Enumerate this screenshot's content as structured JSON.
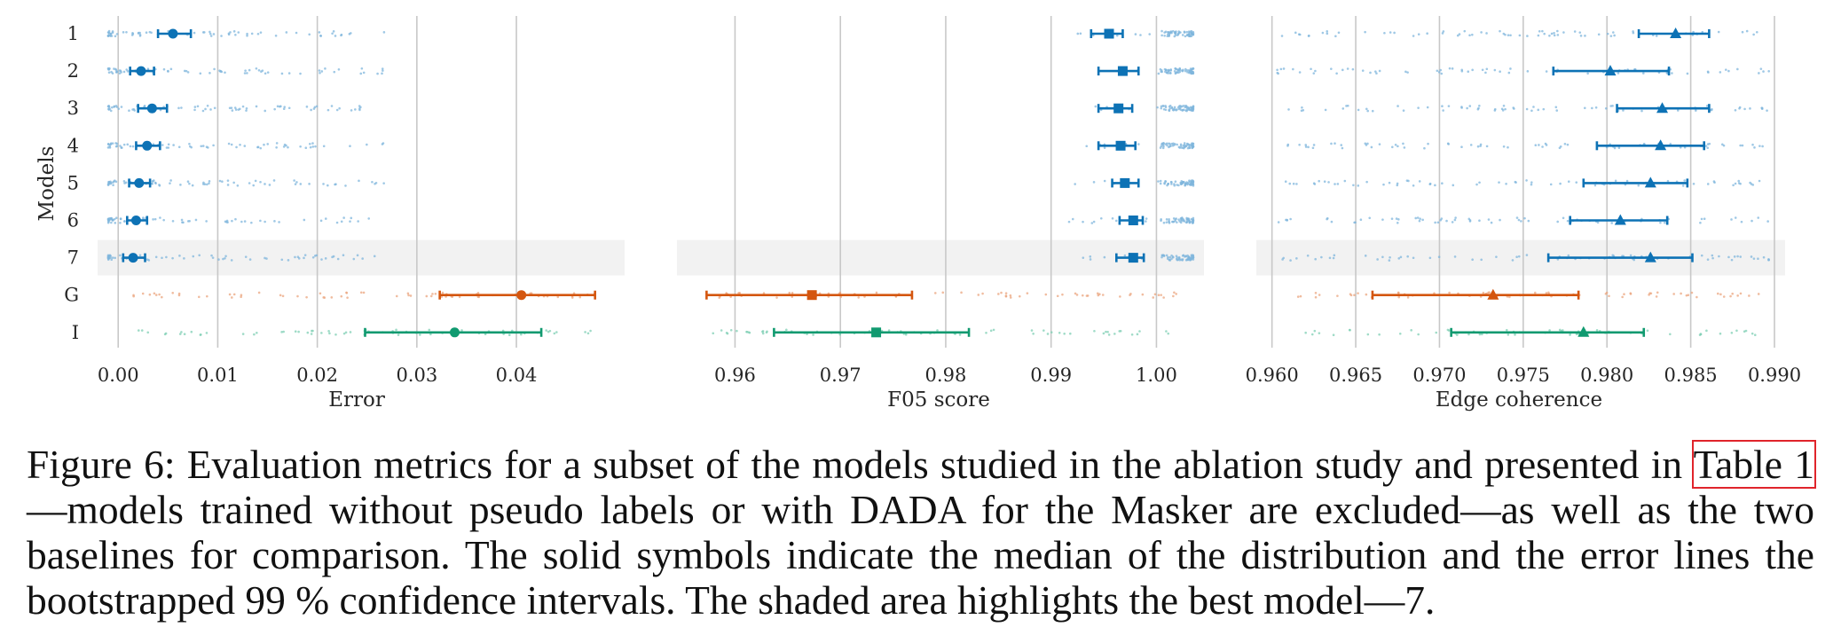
{
  "chart_data": [
    {
      "type": "scatter",
      "xlabel": "Error",
      "ylabel": "Models",
      "categories": [
        "1",
        "2",
        "3",
        "4",
        "5",
        "6",
        "7",
        "G",
        "I"
      ],
      "xlim": [
        -0.001,
        0.0498
      ],
      "xticks": [
        0.0,
        0.01,
        0.02,
        0.03,
        0.04
      ],
      "xtick_labels": [
        "0.00",
        "0.01",
        "0.02",
        "0.03",
        "0.04"
      ],
      "highlight": "7",
      "grid": "vertical",
      "median": [
        0.0055,
        0.0023,
        0.0034,
        0.0029,
        0.0021,
        0.0018,
        0.0015,
        0.0405,
        0.0338
      ],
      "ci_low": [
        0.004,
        0.0012,
        0.002,
        0.0018,
        0.0011,
        0.0009,
        0.0005,
        0.0323,
        0.0248
      ],
      "ci_high": [
        0.0073,
        0.0036,
        0.0049,
        0.0042,
        0.0032,
        0.0029,
        0.0027,
        0.0479,
        0.0425
      ],
      "marker": "circle"
    },
    {
      "type": "scatter",
      "xlabel": "F05 score",
      "ylabel": "",
      "categories": [
        "1",
        "2",
        "3",
        "4",
        "5",
        "6",
        "7",
        "G",
        "I"
      ],
      "xlim": [
        0.9555,
        1.0035
      ],
      "xticks": [
        0.96,
        0.97,
        0.98,
        0.99,
        1.0
      ],
      "xtick_labels": [
        "0.96",
        "0.97",
        "0.98",
        "0.99",
        "1.00"
      ],
      "highlight": "7",
      "grid": "vertical",
      "median": [
        0.9955,
        0.9968,
        0.9964,
        0.9966,
        0.997,
        0.9978,
        0.9978,
        0.9673,
        0.9734
      ],
      "ci_low": [
        0.9938,
        0.9945,
        0.9945,
        0.9945,
        0.9958,
        0.9965,
        0.9962,
        0.9573,
        0.9637
      ],
      "ci_high": [
        0.9968,
        0.9983,
        0.9977,
        0.998,
        0.9983,
        0.9987,
        0.9988,
        0.9768,
        0.9822
      ],
      "marker": "square"
    },
    {
      "type": "scatter",
      "xlabel": "Edge coherence",
      "ylabel": "",
      "categories": [
        "1",
        "2",
        "3",
        "4",
        "5",
        "6",
        "7",
        "G",
        "I"
      ],
      "xlim": [
        0.9597,
        0.99
      ],
      "xticks": [
        0.96,
        0.965,
        0.97,
        0.975,
        0.98,
        0.985,
        0.99
      ],
      "xtick_labels": [
        "0.960",
        "0.965",
        "0.970",
        "0.975",
        "0.980",
        "0.985",
        "0.990"
      ],
      "highlight": "7",
      "grid": "vertical",
      "median": [
        0.9841,
        0.9802,
        0.9833,
        0.9832,
        0.9826,
        0.9808,
        0.9826,
        0.9732,
        0.9786
      ],
      "ci_low": [
        0.9819,
        0.9768,
        0.9806,
        0.9794,
        0.9786,
        0.9778,
        0.9765,
        0.966,
        0.9707
      ],
      "ci_high": [
        0.9861,
        0.9837,
        0.9861,
        0.9858,
        0.9848,
        0.9836,
        0.9851,
        0.9783,
        0.9822
      ],
      "marker": "triangle"
    }
  ],
  "colors": {
    "models": "#0d72b5",
    "G": "#d4560f",
    "I": "#119a70",
    "models_points": "#7fb6dc",
    "G_points": "#eba57f",
    "I_points": "#7fcfb4",
    "grid": "#c8c8c8",
    "highlight": "#f2f2f2"
  },
  "caption": {
    "p1": "Figure 6: Evaluation metrics for a subset of the models studied in the ablation study and presented in ",
    "ref": "Table 1",
    "p2": "—models trained without pseudo labels or with DADA for the Masker are excluded—as well as the two baselines for comparison. The solid symbols indicate the median of the distribution and the error lines the bootstrapped 99 % confidence intervals. The shaded area highlights the best model—7."
  }
}
